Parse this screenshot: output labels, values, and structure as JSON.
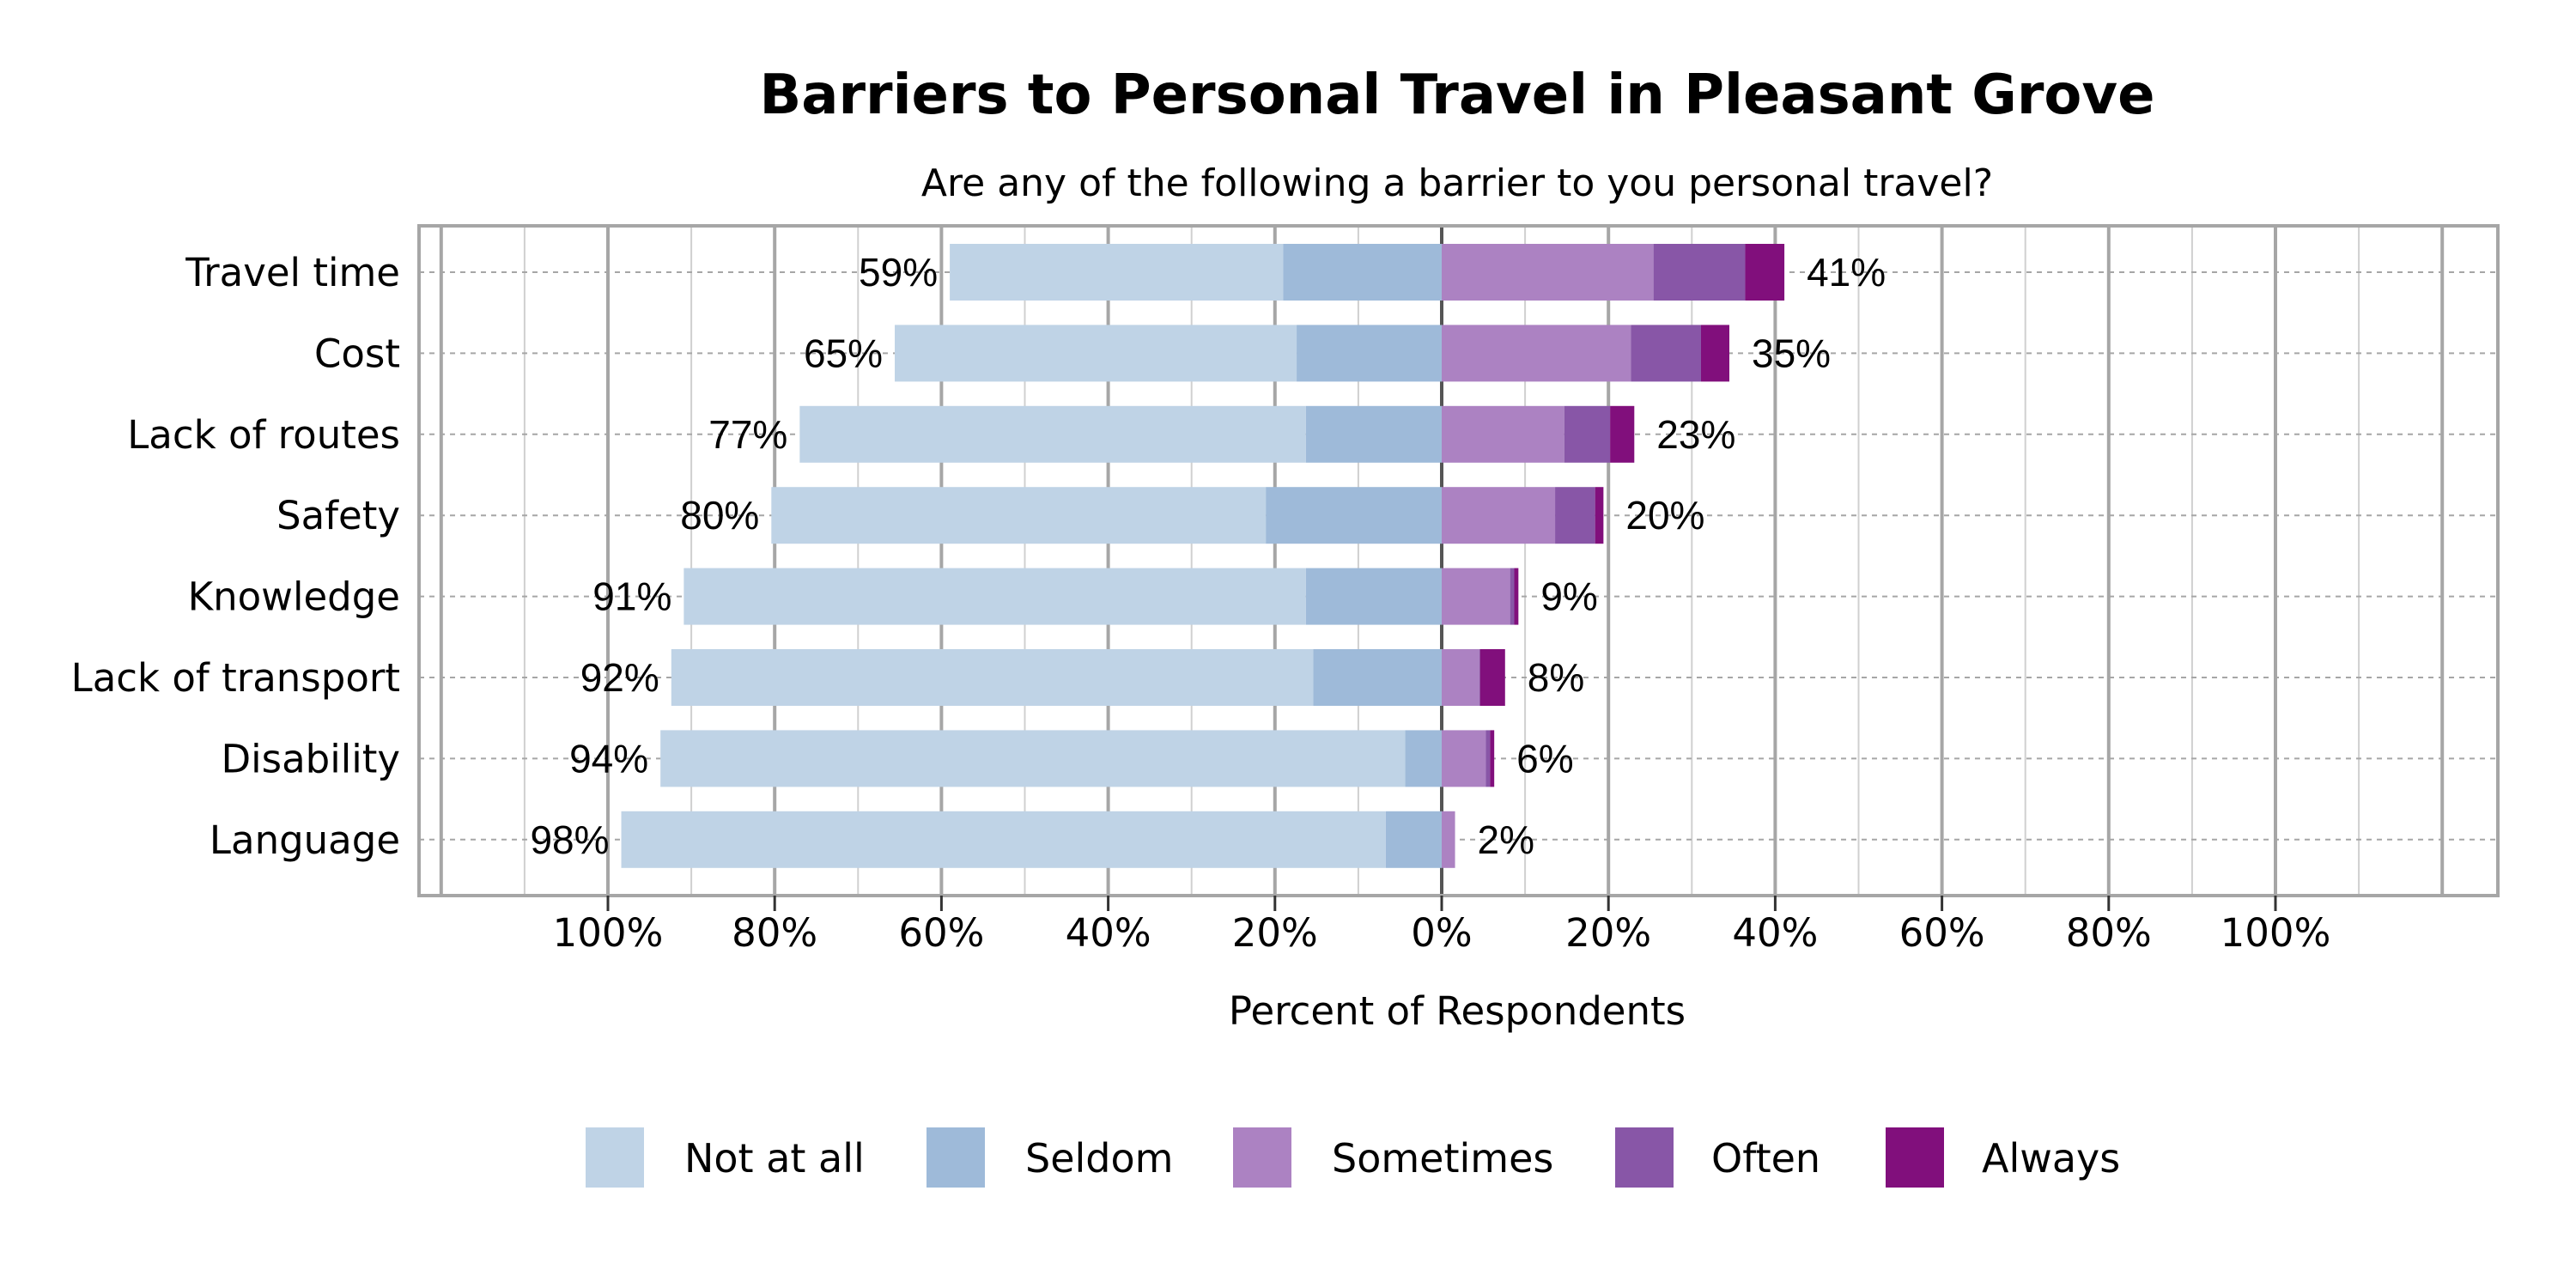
{
  "chart_data": {
    "type": "bar",
    "orientation": "horizontal",
    "stacked": "diverging",
    "title": "Barriers to Personal Travel in Pleasant Grove",
    "subtitle": "Are any of the following a barrier to you personal travel?",
    "xlabel": "Percent of Respondents",
    "xlim": [
      -100,
      100
    ],
    "x_ticks": [
      "100%",
      "80%",
      "60%",
      "40%",
      "20%",
      "0%",
      "20%",
      "40%",
      "60%",
      "80%",
      "100%"
    ],
    "grid": true,
    "legend_position": "bottom",
    "categories": [
      "Travel time",
      "Cost",
      "Lack of routes",
      "Safety",
      "Knowledge",
      "Lack of transport",
      "Disability",
      "Language"
    ],
    "series": [
      {
        "name": "Not at all",
        "side": "left",
        "color": "#bfd3e6",
        "values": [
          40.0,
          48.2,
          60.7,
          59.3,
          74.6,
          77.0,
          89.3,
          91.7
        ]
      },
      {
        "name": "Seldom",
        "side": "left",
        "color": "#9ebad9",
        "values": [
          19.0,
          17.4,
          16.3,
          21.1,
          16.3,
          15.4,
          4.4,
          6.7
        ]
      },
      {
        "name": "Sometimes",
        "side": "right",
        "color": "#ac82c2",
        "values": [
          25.4,
          22.7,
          14.7,
          13.6,
          8.2,
          4.5,
          5.3,
          1.6
        ]
      },
      {
        "name": "Often",
        "side": "right",
        "color": "#8856a7",
        "values": [
          11.0,
          8.4,
          5.5,
          4.8,
          0.5,
          0.1,
          0.5,
          0
        ]
      },
      {
        "name": "Always",
        "side": "right",
        "color": "#810f7c",
        "values": [
          4.7,
          3.4,
          2.9,
          1.0,
          0.5,
          3.0,
          0.5,
          0
        ]
      }
    ],
    "left_labels": [
      "59%",
      "65%",
      "77%",
      "80%",
      "91%",
      "92%",
      "94%",
      "98%"
    ],
    "right_labels": [
      "41%",
      "35%",
      "23%",
      "20%",
      "9%",
      "8%",
      "6%",
      "2%"
    ]
  }
}
